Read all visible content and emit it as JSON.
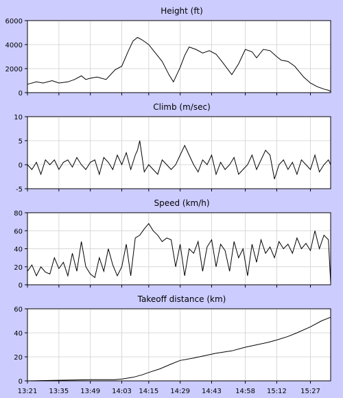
{
  "chart_data": [
    {
      "type": "line",
      "title": "Height (ft)",
      "xlabel": "",
      "ylabel": "",
      "ylim": [
        0,
        6000
      ],
      "yticks": [
        "0",
        "2000",
        "4000",
        "6000"
      ],
      "grid": true,
      "series": [
        {
          "x": [
            "13:21",
            "13:25",
            "13:28",
            "13:32",
            "13:35",
            "13:39",
            "13:42",
            "13:45",
            "13:47",
            "13:49",
            "13:52",
            "13:56",
            "14:00",
            "14:03",
            "14:06",
            "14:08",
            "14:10",
            "14:12",
            "14:15",
            "14:18",
            "14:21",
            "14:24",
            "14:26",
            "14:27",
            "14:29",
            "14:31",
            "14:33",
            "14:36",
            "14:39",
            "14:42",
            "14:45",
            "14:48",
            "14:52",
            "14:55",
            "14:58",
            "15:01",
            "15:03",
            "15:06",
            "15:09",
            "15:12",
            "15:14",
            "15:17",
            "15:20",
            "15:24",
            "15:27",
            "15:30",
            "15:33",
            "15:35",
            "15:36"
          ],
          "values": [
            700,
            900,
            800,
            1000,
            800,
            900,
            1100,
            1400,
            1100,
            1200,
            1300,
            1100,
            1900,
            2200,
            3500,
            4300,
            4600,
            4400,
            4000,
            3300,
            2600,
            1500,
            900,
            1300,
            2100,
            3100,
            3800,
            3600,
            3300,
            3500,
            3200,
            2500,
            1500,
            2400,
            3600,
            3400,
            2900,
            3600,
            3500,
            3000,
            2700,
            2600,
            2200,
            1300,
            800,
            500,
            300,
            200,
            100
          ]
        }
      ]
    },
    {
      "type": "line",
      "title": "Climb (m/sec)",
      "xlabel": "",
      "ylabel": "",
      "ylim": [
        -5,
        10
      ],
      "yticks": [
        "-5",
        "0",
        "5",
        "10"
      ],
      "grid": true,
      "series": [
        {
          "x": [
            "13:21",
            "13:23",
            "13:25",
            "13:27",
            "13:29",
            "13:31",
            "13:33",
            "13:35",
            "13:37",
            "13:39",
            "13:41",
            "13:43",
            "13:45",
            "13:47",
            "13:49",
            "13:51",
            "13:53",
            "13:55",
            "13:57",
            "13:59",
            "14:01",
            "14:03",
            "14:05",
            "14:07",
            "14:09",
            "14:10",
            "14:11",
            "14:13",
            "14:15",
            "14:17",
            "14:19",
            "14:21",
            "14:23",
            "14:25",
            "14:27",
            "14:29",
            "14:31",
            "14:32",
            "14:33",
            "14:35",
            "14:37",
            "14:39",
            "14:41",
            "14:43",
            "14:45",
            "14:47",
            "14:49",
            "14:51",
            "14:53",
            "14:55",
            "14:57",
            "14:59",
            "15:01",
            "15:03",
            "15:05",
            "15:07",
            "15:09",
            "15:11",
            "15:13",
            "15:15",
            "15:17",
            "15:19",
            "15:21",
            "15:23",
            "15:25",
            "15:27",
            "15:29",
            "15:31",
            "15:33",
            "15:35",
            "15:36"
          ],
          "values": [
            0,
            -1,
            0.5,
            -2,
            1,
            0,
            1,
            -1,
            0.5,
            1,
            -0.5,
            1.5,
            0,
            -1,
            0.5,
            1,
            -2,
            1.5,
            0.5,
            -1,
            2,
            0,
            2.5,
            -1,
            2,
            3,
            5,
            -1.5,
            0,
            -1,
            -2,
            1,
            0,
            -1,
            0,
            2,
            4,
            3,
            2,
            0,
            -1.5,
            1,
            0,
            2,
            -2,
            0.5,
            -1,
            0,
            1.5,
            -2,
            -1,
            0,
            2,
            -1,
            1,
            3,
            2,
            -3,
            0,
            1,
            -1,
            0.5,
            -2,
            1,
            0,
            -1,
            2,
            -1.5,
            0,
            1,
            0
          ]
        }
      ]
    },
    {
      "type": "line",
      "title": "Speed (km/h)",
      "xlabel": "",
      "ylabel": "",
      "ylim": [
        0,
        80
      ],
      "yticks": [
        "0",
        "20",
        "40",
        "60",
        "80"
      ],
      "grid": true,
      "series": [
        {
          "x": [
            "13:21",
            "13:23",
            "13:25",
            "13:27",
            "13:29",
            "13:31",
            "13:33",
            "13:35",
            "13:37",
            "13:39",
            "13:41",
            "13:43",
            "13:45",
            "13:47",
            "13:49",
            "13:51",
            "13:53",
            "13:55",
            "13:57",
            "13:59",
            "14:01",
            "14:03",
            "14:05",
            "14:07",
            "14:09",
            "14:11",
            "14:13",
            "14:15",
            "14:17",
            "14:19",
            "14:21",
            "14:23",
            "14:25",
            "14:27",
            "14:29",
            "14:31",
            "14:33",
            "14:35",
            "14:37",
            "14:39",
            "14:41",
            "14:43",
            "14:45",
            "14:47",
            "14:49",
            "14:51",
            "14:53",
            "14:55",
            "14:57",
            "14:59",
            "15:01",
            "15:03",
            "15:05",
            "15:07",
            "15:09",
            "15:11",
            "15:13",
            "15:15",
            "15:17",
            "15:19",
            "15:21",
            "15:23",
            "15:25",
            "15:27",
            "15:29",
            "15:31",
            "15:33",
            "15:35",
            "15:36"
          ],
          "values": [
            15,
            22,
            10,
            20,
            14,
            12,
            30,
            18,
            25,
            10,
            35,
            15,
            48,
            20,
            12,
            8,
            30,
            15,
            40,
            22,
            10,
            20,
            45,
            10,
            52,
            55,
            62,
            68,
            60,
            55,
            48,
            52,
            50,
            20,
            45,
            10,
            40,
            35,
            48,
            15,
            42,
            50,
            20,
            45,
            38,
            15,
            48,
            30,
            40,
            10,
            45,
            25,
            50,
            35,
            42,
            30,
            48,
            40,
            45,
            35,
            52,
            40,
            46,
            38,
            60,
            40,
            55,
            50,
            2
          ]
        }
      ]
    },
    {
      "type": "area",
      "title": "Takeoff distance (km)",
      "xlabel": "",
      "ylabel": "",
      "ylim": [
        0,
        60
      ],
      "yticks": [
        "0",
        "20",
        "40",
        "60"
      ],
      "grid": true,
      "series": [
        {
          "x": [
            "13:21",
            "13:35",
            "13:49",
            "14:00",
            "14:03",
            "14:08",
            "14:12",
            "14:15",
            "14:20",
            "14:25",
            "14:29",
            "14:35",
            "14:40",
            "14:45",
            "14:52",
            "14:58",
            "15:03",
            "15:08",
            "15:12",
            "15:17",
            "15:21",
            "15:27",
            "15:32",
            "15:36"
          ],
          "values": [
            0,
            0.5,
            1,
            1,
            1.5,
            3,
            5,
            7,
            10,
            14,
            17,
            19,
            21,
            23,
            25,
            28,
            30,
            32,
            34,
            37,
            40,
            45,
            50,
            53
          ]
        }
      ]
    }
  ],
  "xaxis": {
    "ticks": [
      "13:21",
      "13:35",
      "13:49",
      "14:03",
      "14:15",
      "14:29",
      "14:43",
      "14:58",
      "15:12",
      "15:27"
    ]
  }
}
